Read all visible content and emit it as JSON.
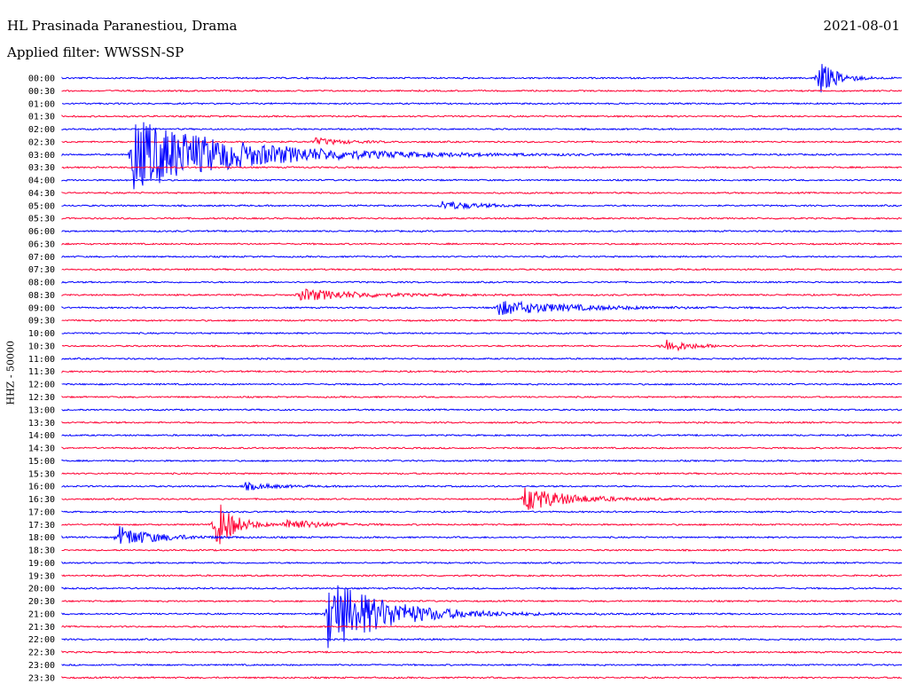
{
  "header": {
    "station": "HL Prasinada Paranestiou, Drama",
    "date": "2021-08-01",
    "filter": "Applied filter: WWSSN-SP",
    "channel": "HHZ - 50000"
  },
  "colors": {
    "odd": "#0000ff",
    "even": "#ff0033"
  },
  "chart_data": {
    "type": "line",
    "title": "HL Prasinada Paranestiou, Drama",
    "ylabel": "HHZ - 50000",
    "row_labels": [
      "00:00",
      "00:30",
      "01:00",
      "01:30",
      "02:00",
      "02:30",
      "03:00",
      "03:30",
      "04:00",
      "04:30",
      "05:00",
      "05:30",
      "06:00",
      "06:30",
      "07:00",
      "07:30",
      "08:00",
      "08:30",
      "09:00",
      "09:30",
      "10:00",
      "10:30",
      "11:00",
      "11:30",
      "12:00",
      "12:30",
      "13:00",
      "13:30",
      "14:00",
      "14:30",
      "15:00",
      "15:30",
      "16:00",
      "16:30",
      "17:00",
      "17:30",
      "18:00",
      "18:30",
      "19:00",
      "19:30",
      "20:00",
      "20:30",
      "21:00",
      "21:30",
      "22:00",
      "22:30",
      "23:00",
      "23:30"
    ],
    "row_minutes": 30,
    "events": [
      {
        "row": "00:00",
        "minute": 27,
        "duration_min": 0.6,
        "amplitude": 1.5
      },
      {
        "row": "02:30",
        "minute": 9,
        "duration_min": 1.0,
        "amplitude": 0.3
      },
      {
        "row": "03:00",
        "minute": 2.5,
        "duration_min": 3.5,
        "amplitude": 3.0
      },
      {
        "row": "05:00",
        "minute": 13.5,
        "duration_min": 1.2,
        "amplitude": 0.4
      },
      {
        "row": "08:30",
        "minute": 8.5,
        "duration_min": 2.0,
        "amplitude": 0.5
      },
      {
        "row": "09:00",
        "minute": 15.5,
        "duration_min": 2.5,
        "amplitude": 0.6
      },
      {
        "row": "10:30",
        "minute": 21.5,
        "duration_min": 0.8,
        "amplitude": 0.6
      },
      {
        "row": "16:00",
        "minute": 6.5,
        "duration_min": 1.0,
        "amplitude": 0.3
      },
      {
        "row": "16:30",
        "minute": 16.5,
        "duration_min": 1.5,
        "amplitude": 1.0
      },
      {
        "row": "17:30",
        "minute": 5.5,
        "duration_min": 0.6,
        "amplitude": 2.2
      },
      {
        "row": "17:30",
        "minute": 8.0,
        "duration_min": 1.0,
        "amplitude": 0.5
      },
      {
        "row": "18:00",
        "minute": 2.0,
        "duration_min": 1.2,
        "amplitude": 0.9
      },
      {
        "row": "21:00",
        "minute": 9.5,
        "duration_min": 2.0,
        "amplitude": 3.0
      }
    ]
  }
}
